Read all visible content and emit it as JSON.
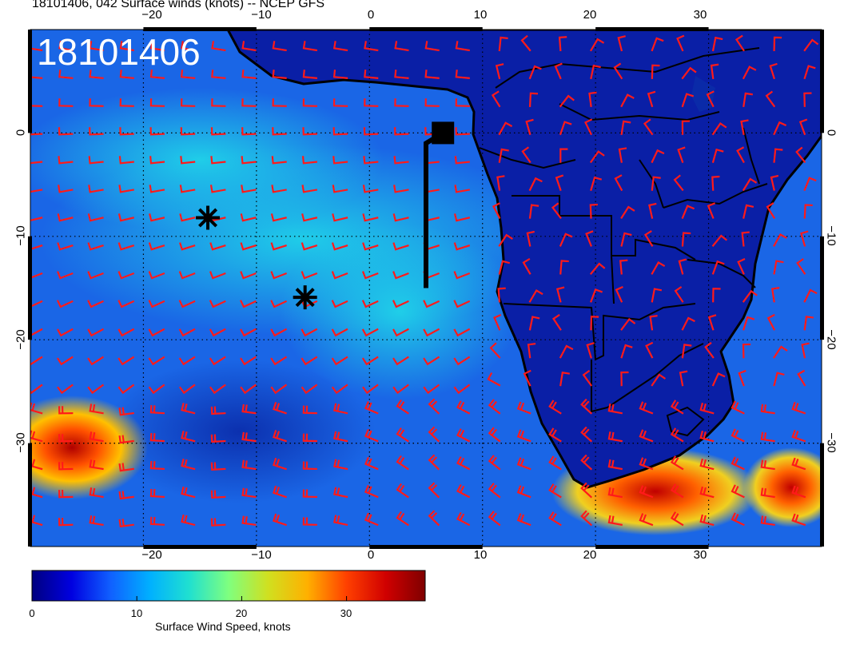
{
  "title": "18101406, 042 Surface winds (knots) -- NCEP GFS",
  "stamp": "18101406",
  "x_ticks": [
    "−20",
    "−10",
    "0",
    "10",
    "20",
    "30"
  ],
  "y_ticks": [
    "0",
    "−10",
    "−20",
    "−30"
  ],
  "colorbar": {
    "title": "Surface Wind Speed, knots",
    "ticks": [
      "0",
      "10",
      "20",
      "30"
    ],
    "colors": [
      "#00007f",
      "#0000e0",
      "#1060ff",
      "#00b0ff",
      "#20e0d0",
      "#7fff7f",
      "#d0e020",
      "#ffb000",
      "#ff4000",
      "#d00000",
      "#7f0000"
    ]
  },
  "map": {
    "projection": "lat-lon",
    "lon_range": [
      -30,
      40
    ],
    "lat_range": [
      -40,
      10
    ],
    "colors": {
      "ocean_base": "#1a66e6",
      "land": "#0a1fa6",
      "barb": "#ff1a1a",
      "coast": "#000000",
      "grid": "#000000"
    },
    "markers": [
      {
        "type": "asterisk-icon",
        "lon": -14.3,
        "lat": -8.2
      },
      {
        "type": "asterisk-icon",
        "lon": -5.7,
        "lat": -15.9
      },
      {
        "type": "square-icon",
        "lon": 6.5,
        "lat": 0.0
      }
    ],
    "track": [
      [
        6.5,
        0.0
      ],
      [
        5.0,
        -1.0
      ],
      [
        5.0,
        -15.0
      ]
    ]
  }
}
